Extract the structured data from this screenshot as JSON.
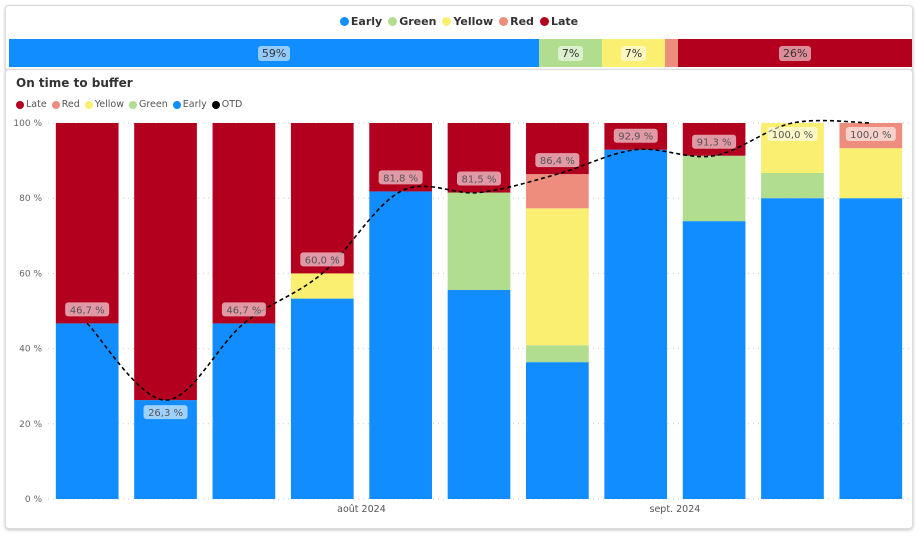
{
  "summary": {
    "legend": [
      {
        "label": "Early",
        "color": "#118DFF"
      },
      {
        "label": "Green",
        "color": "#B0DD8E"
      },
      {
        "label": "Yellow",
        "color": "#FAEF70"
      },
      {
        "label": "Red",
        "color": "#EE8D7E"
      },
      {
        "label": "Late",
        "color": "#B3001E"
      }
    ],
    "segments": [
      {
        "name": "Early",
        "value": 59,
        "label": "59%",
        "color": "#118DFF"
      },
      {
        "name": "Green",
        "value": 7,
        "label": "7%",
        "color": "#B0DD8E"
      },
      {
        "name": "Yellow",
        "value": 7,
        "label": "7%",
        "color": "#FAEF70"
      },
      {
        "name": "Red",
        "value": 1.5,
        "label": "",
        "color": "#EE8D7E"
      },
      {
        "name": "Late",
        "value": 26,
        "label": "26%",
        "color": "#B3001E"
      }
    ]
  },
  "chart_data": {
    "type": "bar",
    "stacked": true,
    "title": "On time to buffer",
    "legend": [
      {
        "label": "Late",
        "color": "#B3001E"
      },
      {
        "label": "Red",
        "color": "#EE8D7E"
      },
      {
        "label": "Yellow",
        "color": "#FAEF70"
      },
      {
        "label": "Green",
        "color": "#B0DD8E"
      },
      {
        "label": "Early",
        "color": "#118DFF"
      },
      {
        "label": "OTD",
        "color": "#000000"
      }
    ],
    "ylim": [
      0,
      100
    ],
    "yticks": [
      "0 %",
      "20 %",
      "40 %",
      "60 %",
      "80 %",
      "100 %"
    ],
    "xtick_labels": [
      {
        "label": "août 2024",
        "between": [
          3,
          4
        ]
      },
      {
        "label": "sept. 2024",
        "between": [
          7,
          8
        ]
      }
    ],
    "grid": true,
    "series": [
      {
        "name": "Early",
        "color": "#118DFF",
        "values": [
          46.7,
          26.3,
          46.7,
          53.3,
          81.8,
          55.6,
          36.4,
          92.9,
          73.9,
          80.0,
          80.0
        ]
      },
      {
        "name": "Green",
        "color": "#B0DD8E",
        "values": [
          0,
          0,
          0,
          0,
          0,
          25.9,
          4.5,
          0,
          17.4,
          6.7,
          0
        ]
      },
      {
        "name": "Yellow",
        "color": "#FAEF70",
        "values": [
          0,
          0,
          0,
          6.7,
          0,
          0,
          36.4,
          0,
          0,
          13.3,
          13.3
        ]
      },
      {
        "name": "Red",
        "color": "#EE8D7E",
        "values": [
          0,
          0,
          0,
          0,
          0,
          0,
          9.1,
          0,
          0,
          0,
          6.7
        ]
      },
      {
        "name": "Late",
        "color": "#B3001E",
        "values": [
          53.3,
          73.7,
          53.3,
          40.0,
          18.2,
          18.5,
          13.6,
          7.1,
          8.7,
          0,
          0
        ]
      }
    ],
    "otd": {
      "name": "OTD",
      "values": [
        46.7,
        26.3,
        46.7,
        60.0,
        81.8,
        81.5,
        86.4,
        92.9,
        91.3,
        100.0,
        100.0
      ],
      "labels": [
        "46,7 %",
        "26,3 %",
        "46,7 %",
        "60,0 %",
        "81,8 %",
        "81,5 %",
        "86,4 %",
        "92,9 %",
        "91,3 %",
        "100,0 %",
        "100,0 %"
      ]
    }
  }
}
